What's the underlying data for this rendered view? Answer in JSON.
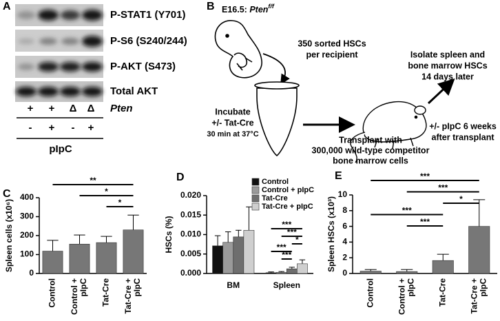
{
  "panel_a": {
    "label": "A",
    "blots": [
      "P-STAT1 (Y701)",
      "P-S6 (S240/244)",
      "P-AKT (S473)",
      "Total AKT"
    ],
    "pten_row": [
      "+",
      "+",
      "Δ",
      "Δ"
    ],
    "pten_label": "Pten",
    "pipc_row": [
      "-",
      "+",
      "-",
      "+"
    ],
    "pipc_label": "pIpC"
  },
  "panel_b": {
    "label": "B",
    "stage": "E16.5: ",
    "genotype": "Pten",
    "genotype_sup": "f/f",
    "step1": [
      "350 sorted HSCs",
      "per recipient"
    ],
    "step2": [
      "Incubate",
      "+/- Tat-Cre"
    ],
    "step2_note": "30 min at 37°C",
    "step3": [
      "Transplant with",
      "300,000 wild-type competitor",
      "bone marrow cells"
    ],
    "step4": [
      "+/- pIpC 6 weeks",
      "after transplant"
    ],
    "step5": [
      "Isolate spleen and",
      "bone marrow HSCs",
      "14 days later"
    ]
  },
  "chart_data": [
    {
      "type": "bar",
      "panel": "C",
      "ylabel": "Spleen cells (x10⁶)",
      "categories": [
        [
          "Control"
        ],
        [
          "Control +",
          "pIpC"
        ],
        [
          "Tat-Cre"
        ],
        [
          "Tat-Cre +",
          "pIpC"
        ]
      ],
      "values": [
        118,
        155,
        163,
        230
      ],
      "errors": [
        57,
        48,
        33,
        78
      ],
      "color": "#777777",
      "ylim": [
        0,
        400
      ],
      "yticks": [
        0,
        100,
        200,
        300,
        400
      ],
      "annotations": [
        {
          "label": "**",
          "from": 0,
          "to": 3
        },
        {
          "label": "*",
          "from": 1,
          "to": 3
        },
        {
          "label": "*",
          "from": 2,
          "to": 3
        }
      ]
    },
    {
      "type": "bar",
      "panel": "D",
      "ylabel": "HSCs (%)",
      "categories": [
        "BM",
        "Spleen"
      ],
      "series": [
        {
          "name": "Control",
          "color": "#111111",
          "values": [
            0.0071,
            0.0002
          ],
          "errors": [
            0.0026,
            0.0002
          ]
        },
        {
          "name": "Control + pIpC",
          "color": "#9a9a9a",
          "values": [
            0.008,
            0.0003
          ],
          "errors": [
            0.0027,
            0.0002
          ]
        },
        {
          "name": "Tat-Cre",
          "color": "#6e6e6e",
          "values": [
            0.0094,
            0.0012
          ],
          "errors": [
            0.0017,
            0.0004
          ]
        },
        {
          "name": "Tat-Cre + pIpC",
          "color": "#cfcfcf",
          "values": [
            0.0111,
            0.0025
          ],
          "errors": [
            0.006,
            0.001
          ]
        }
      ],
      "ylim": [
        0,
        0.02
      ],
      "yticks": [
        {
          "value": 0,
          "label": "0.000"
        },
        {
          "value": 0.005,
          "label": "0.005"
        },
        {
          "value": 0.01,
          "label": "0.010"
        },
        {
          "value": 0.015,
          "label": "0.015"
        },
        {
          "value": 0.02,
          "label": "0.020"
        }
      ],
      "annotations": [
        {
          "label": "***",
          "group": 1,
          "from": 0,
          "to": 3
        },
        {
          "label": "***",
          "group": 1,
          "from": 1,
          "to": 3
        },
        {
          "label": "*",
          "group": 1,
          "from": 2,
          "to": 3
        },
        {
          "label": "***",
          "group": 1,
          "from": 0,
          "to": 2
        },
        {
          "label": "***",
          "group": 1,
          "from": 1,
          "to": 2
        }
      ]
    },
    {
      "type": "bar",
      "panel": "E",
      "ylabel": "Spleen HSCs (x10³)",
      "categories": [
        [
          "Control"
        ],
        [
          "Control +",
          "pIpC"
        ],
        [
          "Tat-Cre"
        ],
        [
          "Tat-Cre +",
          "pIpC"
        ]
      ],
      "values": [
        0.3,
        0.25,
        1.65,
        6.0
      ],
      "errors": [
        0.2,
        0.25,
        0.8,
        3.4
      ],
      "color": "#777777",
      "ylim": [
        0,
        10
      ],
      "yticks": [
        0,
        2,
        4,
        6,
        8,
        10
      ],
      "annotations": [
        {
          "label": "***",
          "from": 0,
          "to": 3
        },
        {
          "label": "***",
          "from": 1,
          "to": 3
        },
        {
          "label": "*",
          "from": 2,
          "to": 3
        },
        {
          "label": "***",
          "from": 0,
          "to": 2
        },
        {
          "label": "***",
          "from": 1,
          "to": 2
        }
      ]
    }
  ]
}
